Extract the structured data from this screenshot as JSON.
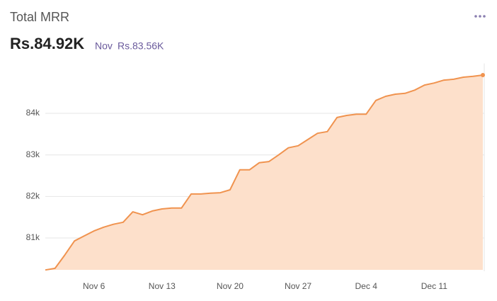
{
  "chart_data": {
    "type": "area",
    "title": "Total MRR",
    "headline": "Rs.84.92K",
    "comparison_label": "Nov",
    "comparison_value": "Rs.83.56K",
    "categories": [
      null,
      null,
      null,
      null,
      null,
      "Nov 6",
      null,
      null,
      null,
      null,
      null,
      null,
      "Nov 13",
      null,
      null,
      null,
      null,
      null,
      null,
      "Nov 20",
      null,
      null,
      null,
      null,
      null,
      null,
      "Nov 27",
      null,
      null,
      null,
      null,
      null,
      null,
      "Dec 4",
      null,
      null,
      null,
      null,
      null,
      null,
      "Dec 11",
      null,
      null,
      null,
      null,
      null
    ],
    "series": [
      {
        "name": "Total MRR",
        "color": "#f0934f",
        "fill": "#fde0cb",
        "values": [
          80230,
          80270,
          80590,
          80930,
          81050,
          81170,
          81260,
          81330,
          81380,
          81630,
          81560,
          81650,
          81700,
          81720,
          81720,
          82060,
          82060,
          82080,
          82090,
          82160,
          82640,
          82640,
          82810,
          82840,
          83000,
          83170,
          83220,
          83370,
          83520,
          83560,
          83900,
          83950,
          83980,
          83980,
          84310,
          84410,
          84460,
          84480,
          84560,
          84680,
          84730,
          84800,
          84820,
          84870,
          84890,
          84920
        ]
      }
    ],
    "ylim": [
      80200,
      85200
    ],
    "yticks": [
      {
        "value": 81000,
        "label": "81k"
      },
      {
        "value": 82000,
        "label": "82k"
      },
      {
        "value": 83000,
        "label": "83k"
      },
      {
        "value": 84000,
        "label": "84k"
      }
    ],
    "grid": true
  }
}
